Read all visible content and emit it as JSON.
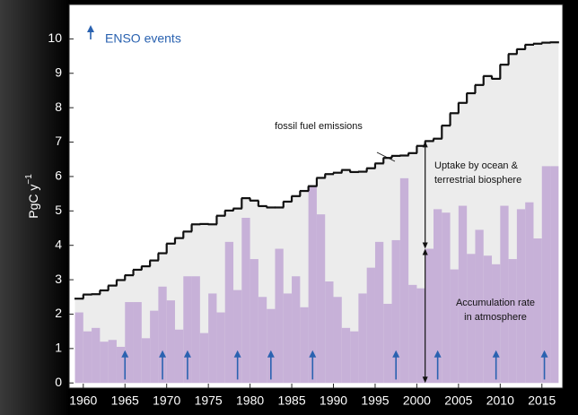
{
  "chart_data": {
    "type": "step-bar",
    "ylabel": "PgC y",
    "ylabel_sup": "−1",
    "x": [
      1959,
      1960,
      1961,
      1962,
      1963,
      1964,
      1965,
      1966,
      1967,
      1968,
      1969,
      1970,
      1971,
      1972,
      1973,
      1974,
      1975,
      1976,
      1977,
      1978,
      1979,
      1980,
      1981,
      1982,
      1983,
      1984,
      1985,
      1986,
      1987,
      1988,
      1989,
      1990,
      1991,
      1992,
      1993,
      1994,
      1995,
      1996,
      1997,
      1998,
      1999,
      2000,
      2001,
      2002,
      2003,
      2004,
      2005,
      2006,
      2007,
      2008,
      2009,
      2010,
      2011,
      2012,
      2013,
      2014,
      2015,
      2016
    ],
    "series": [
      {
        "name": "fossil fuel emissions",
        "color": "#111111",
        "values": [
          2.45,
          2.57,
          2.58,
          2.69,
          2.83,
          2.99,
          3.13,
          3.29,
          3.39,
          3.56,
          3.77,
          4.05,
          4.21,
          4.4,
          4.61,
          4.62,
          4.61,
          4.86,
          5.01,
          5.07,
          5.37,
          5.3,
          5.14,
          5.1,
          5.1,
          5.27,
          5.43,
          5.58,
          5.72,
          5.96,
          6.07,
          6.11,
          6.19,
          6.13,
          6.14,
          6.24,
          6.38,
          6.54,
          6.6,
          6.61,
          6.68,
          6.89,
          7.03,
          7.1,
          7.48,
          7.84,
          8.14,
          8.42,
          8.66,
          8.92,
          8.84,
          9.25,
          9.56,
          9.7,
          9.83,
          9.86,
          9.89,
          9.9
        ]
      },
      {
        "color": "#c7b1d8",
        "values": [
          2.05,
          1.5,
          1.6,
          1.2,
          1.25,
          1.05,
          2.35,
          2.35,
          1.3,
          2.1,
          2.8,
          2.4,
          1.55,
          3.1,
          3.1,
          1.45,
          2.6,
          2.05,
          4.1,
          2.7,
          4.8,
          3.6,
          2.5,
          2.15,
          3.9,
          2.6,
          3.1,
          2.2,
          5.7,
          4.9,
          2.95,
          2.5,
          1.6,
          1.5,
          2.6,
          3.35,
          4.1,
          2.3,
          4.15,
          5.95,
          2.85,
          2.75,
          3.9,
          5.05,
          4.95,
          3.3,
          5.15,
          3.75,
          4.45,
          3.7,
          3.45,
          5.15,
          3.6,
          5.05,
          5.25,
          4.2,
          6.3,
          6.3
        ]
      }
    ],
    "area_color": "#ececec",
    "xlim": [
      1958.3,
      2017.5
    ],
    "xticks": [
      1960,
      1965,
      1970,
      1975,
      1980,
      1985,
      1990,
      1995,
      2000,
      2005,
      2010,
      2015
    ],
    "ylim": [
      -0.15,
      11
    ],
    "yticks": [
      0,
      1,
      2,
      3,
      4,
      5,
      6,
      7,
      8,
      9,
      10
    ],
    "enso_color": "#2a62b0",
    "enso_label": "ENSO events",
    "enso_events": [
      1965,
      1969.5,
      1972.5,
      1978.5,
      1982.5,
      1987.5,
      1997.5,
      2002.5,
      2009.5,
      2015.3
    ],
    "bracket_x": 2001,
    "annotations": {
      "fossil": "fossil fuel emissions",
      "uptake": [
        "Uptake by ocean &",
        "terrestrial biosphere"
      ],
      "accumulation": [
        "Accumulation rate",
        "in atmosphere"
      ]
    }
  }
}
